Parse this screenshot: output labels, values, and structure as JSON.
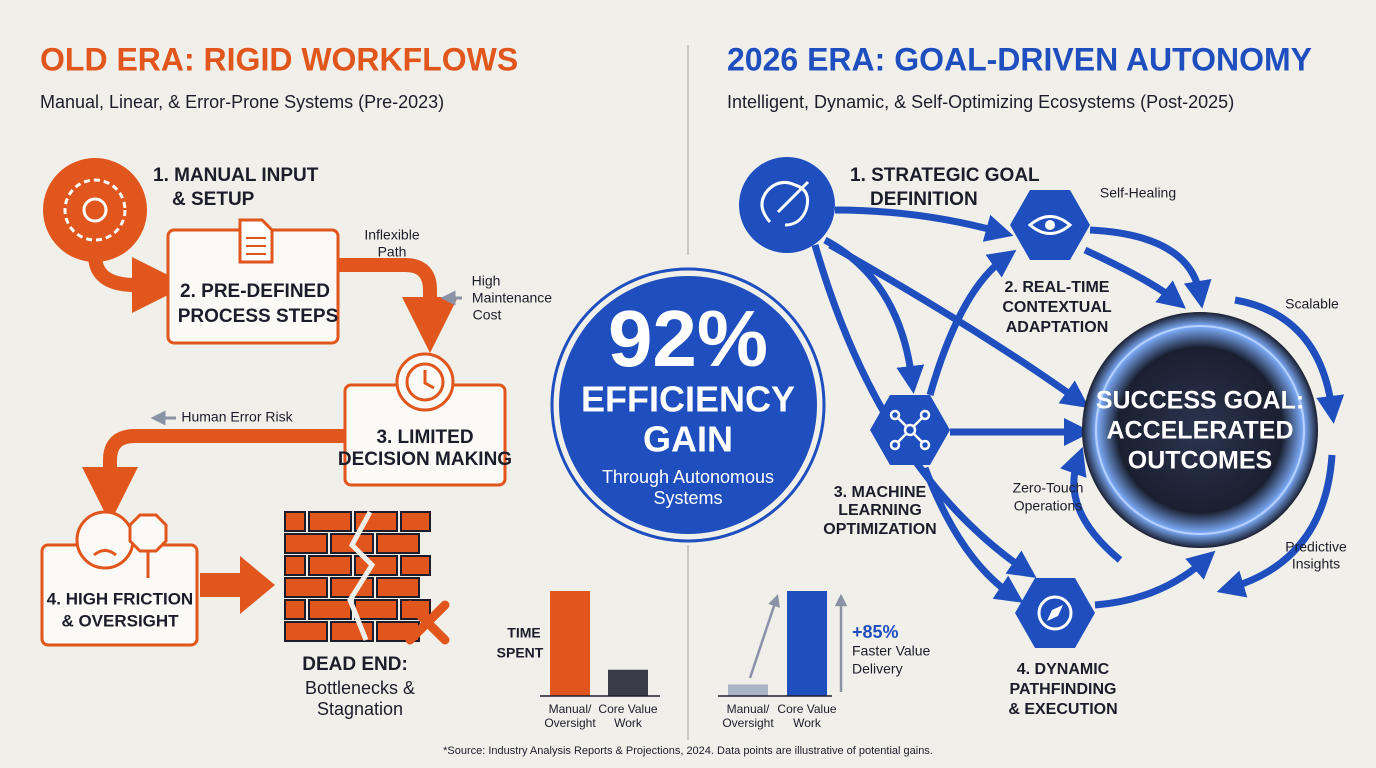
{
  "left": {
    "title": "OLD ERA: RIGID WORKFLOWS",
    "subtitle": "Manual, Linear, & Error-Prone Systems (Pre-2023)",
    "steps": [
      {
        "lines": [
          "1. MANUAL INPUT",
          "& SETUP"
        ]
      },
      {
        "lines": [
          "2. PRE-DEFINED",
          "PROCESS STEPS"
        ]
      },
      {
        "lines": [
          "3. LIMITED",
          "DECISION MAKING"
        ]
      },
      {
        "lines": [
          "4. HIGH FRICTION",
          "& OVERSIGHT"
        ]
      }
    ],
    "notes": [
      [
        "Inflexible",
        "Path"
      ],
      [
        "High",
        "Maintenance",
        "Cost"
      ],
      [
        "Human Error Risk"
      ]
    ],
    "dead_end": {
      "title": "DEAD END:",
      "lines": [
        "Bottlenecks &",
        "Stagnation"
      ]
    },
    "chart": {
      "label": [
        "TIME",
        "SPENT"
      ],
      "categories": [
        [
          "Manual/",
          "Oversight"
        ],
        [
          "Core Value",
          "Work"
        ]
      ],
      "values": [
        100,
        25
      ],
      "colors": [
        "#e0561c",
        "#3a3d48"
      ]
    }
  },
  "center": {
    "stat": "92%",
    "lines": [
      "EFFICIENCY",
      "GAIN"
    ],
    "sub": [
      "Through Autonomous",
      "Systems"
    ]
  },
  "right": {
    "title": "2026 ERA: GOAL-DRIVEN AUTONOMY",
    "subtitle": "Intelligent, Dynamic, & Self-Optimizing Ecosystems (Post-2025)",
    "steps": [
      {
        "lines": [
          "1. STRATEGIC GOAL",
          "DEFINITION"
        ]
      },
      {
        "lines": [
          "2. REAL-TIME",
          "CONTEXTUAL",
          "ADAPTATION"
        ]
      },
      {
        "lines": [
          "3. MACHINE",
          "LEARNING",
          "OPTIMIZATION"
        ]
      },
      {
        "lines": [
          "4. DYNAMIC",
          "PATHFINDING",
          "& EXECUTION"
        ]
      }
    ],
    "goal": [
      "SUCCESS GOAL:",
      "ACCELERATED",
      "OUTCOMES"
    ],
    "notes": [
      [
        "Self-Healing"
      ],
      [
        "Scalable"
      ],
      [
        "Zero-Touch",
        "Operations"
      ],
      [
        "Predictive",
        "Insights"
      ]
    ],
    "chart": {
      "categories": [
        [
          "Manual/",
          "Oversight"
        ],
        [
          "Core Value",
          "Work"
        ]
      ],
      "values": [
        11,
        100
      ],
      "colors": [
        "#a9b4c6",
        "#1f4fbf"
      ],
      "annotation": [
        "+85%",
        "Faster Value",
        "Delivery"
      ]
    }
  },
  "footer": "*Source: Industry Analysis Reports & Projections, 2024. Data points are illustrative of potential gains."
}
